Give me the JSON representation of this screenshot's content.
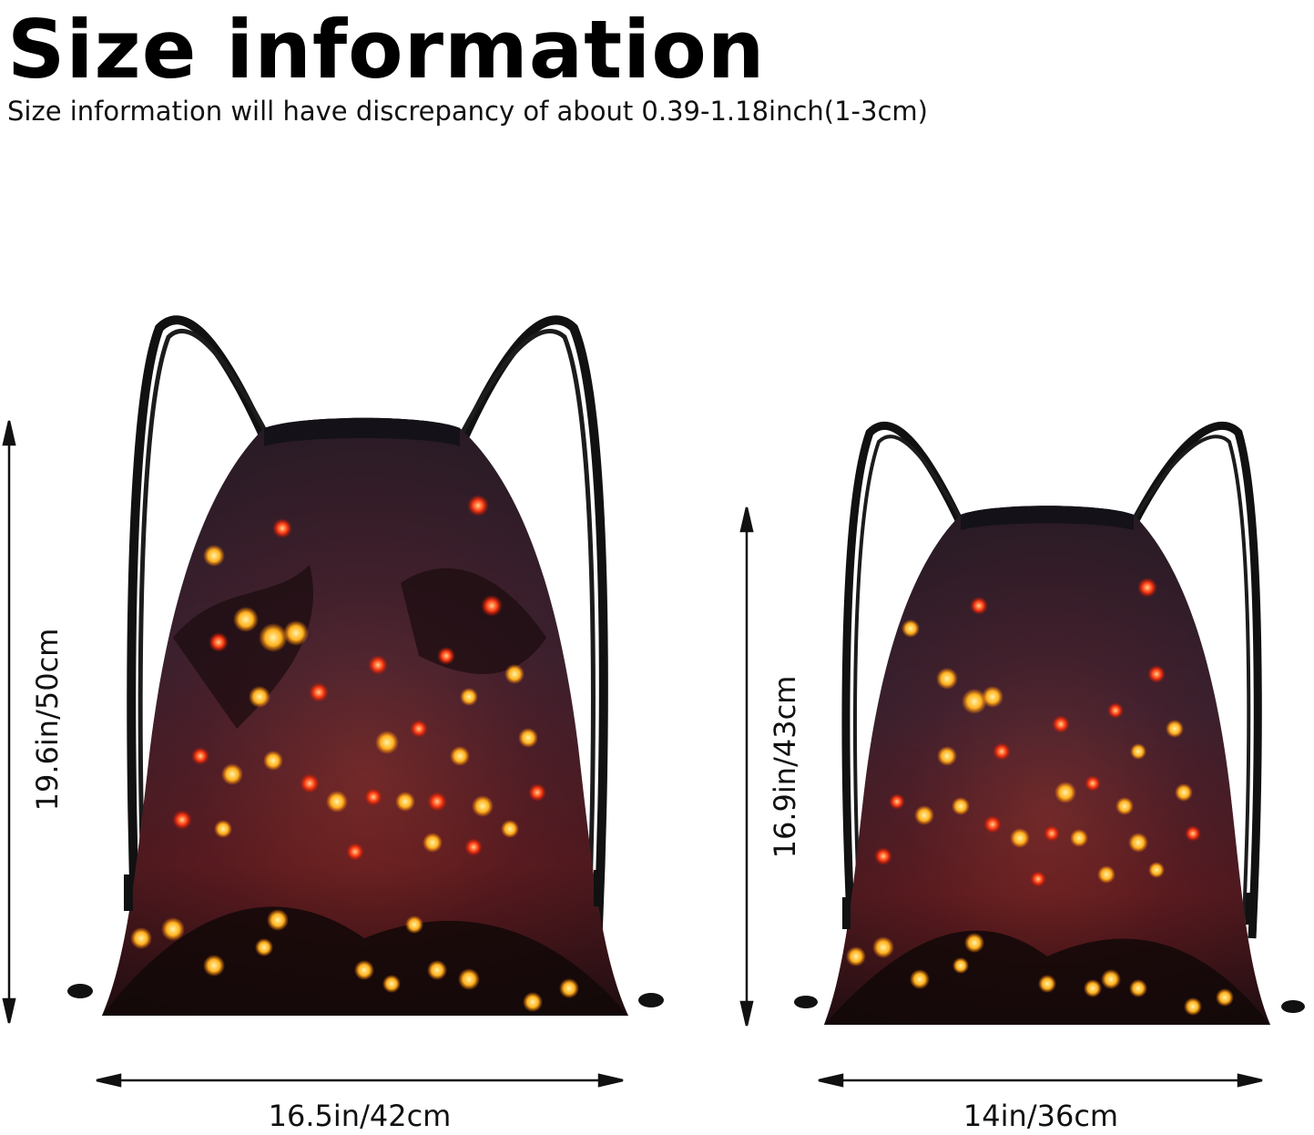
{
  "header": {
    "title": "Size information",
    "subtitle": "Size information will have discrepancy of about 0.39-1.18inch(1-3cm)"
  },
  "large_bag": {
    "height_label": "19.6in/50cm",
    "width_label": "16.5in/42cm"
  },
  "small_bag": {
    "height_label": "16.9in/43cm",
    "width_label": "14in/36cm"
  }
}
